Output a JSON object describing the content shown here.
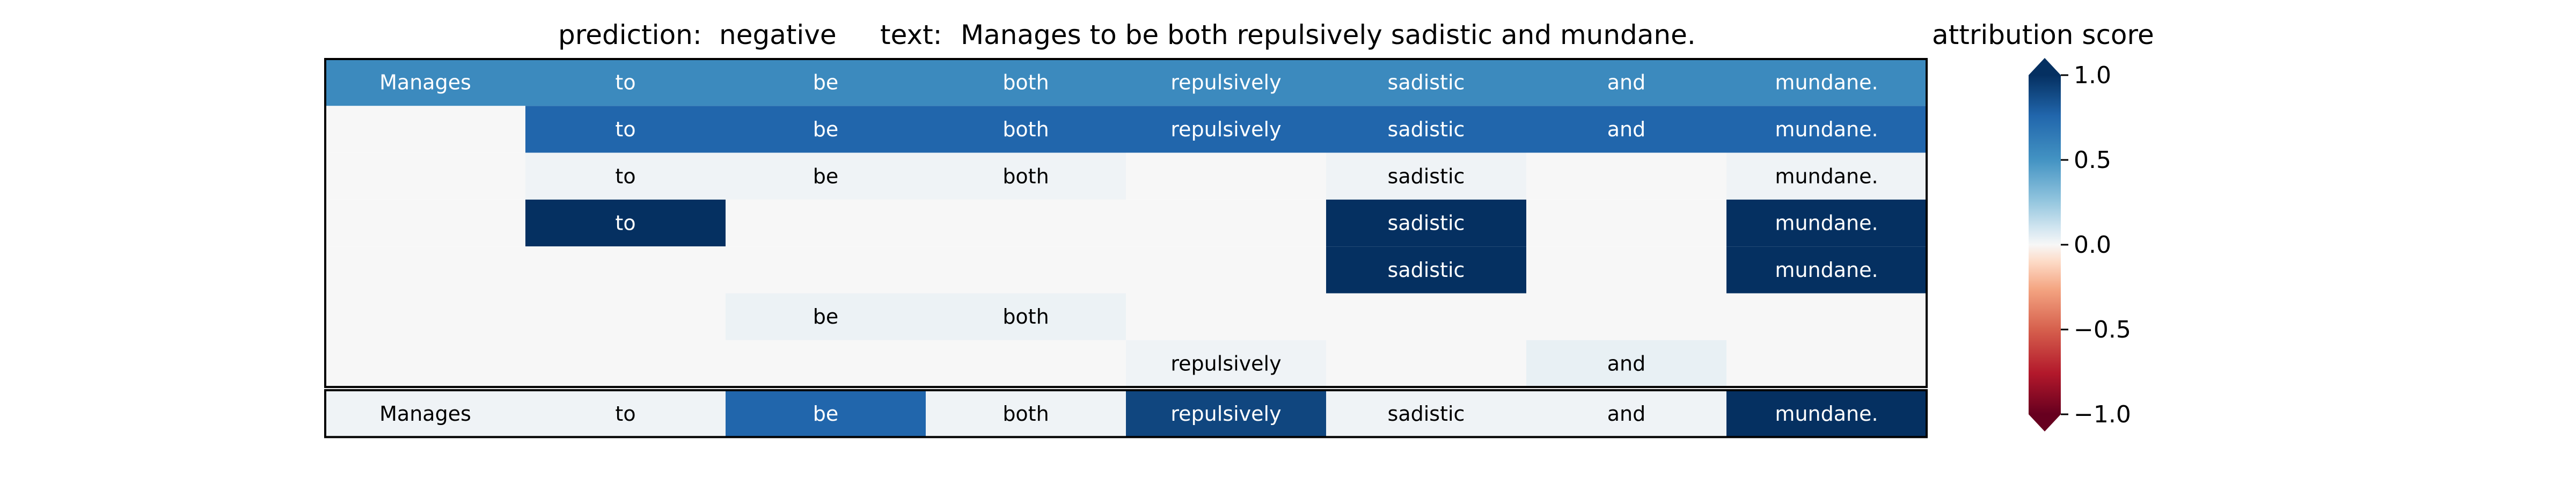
{
  "header": {
    "prediction_label": "prediction:",
    "prediction_value": "negative",
    "text_label": "text:",
    "text_value": "Manages to be both repulsively sadistic and mundane."
  },
  "chart_data": {
    "type": "heatmap",
    "tokens": [
      "Manages",
      "to",
      "be",
      "both",
      "repulsively",
      "sadistic",
      "and",
      "mundane."
    ],
    "rows": [
      [
        0.55,
        0.55,
        0.55,
        0.55,
        0.55,
        0.55,
        0.55,
        0.55
      ],
      [
        0.0,
        0.75,
        0.75,
        0.75,
        0.75,
        0.75,
        0.75,
        0.75
      ],
      [
        0.0,
        0.02,
        0.02,
        0.02,
        0.0,
        0.02,
        0.0,
        0.02
      ],
      [
        0.0,
        1.0,
        0.0,
        0.0,
        0.0,
        1.0,
        0.0,
        1.0
      ],
      [
        0.0,
        0.0,
        0.0,
        0.0,
        0.0,
        1.0,
        0.0,
        1.0
      ],
      [
        0.0,
        0.0,
        0.03,
        0.03,
        0.0,
        0.0,
        0.0,
        0.0
      ],
      [
        0.0,
        0.0,
        0.0,
        0.0,
        0.02,
        0.0,
        0.04,
        0.0
      ]
    ],
    "row_token_visible": [
      [
        true,
        true,
        true,
        true,
        true,
        true,
        true,
        true
      ],
      [
        false,
        true,
        true,
        true,
        true,
        true,
        true,
        true
      ],
      [
        false,
        true,
        true,
        true,
        false,
        true,
        false,
        true
      ],
      [
        false,
        true,
        false,
        false,
        false,
        true,
        false,
        true
      ],
      [
        false,
        false,
        false,
        false,
        false,
        true,
        false,
        true
      ],
      [
        false,
        false,
        true,
        true,
        false,
        false,
        false,
        false
      ],
      [
        false,
        false,
        false,
        false,
        true,
        false,
        true,
        false
      ]
    ],
    "summary_row": [
      0.02,
      0.02,
      0.75,
      0.02,
      0.9,
      0.02,
      0.02,
      1.0
    ],
    "colorbar": {
      "title": "attribution score",
      "ticks": [
        "1.0",
        "0.5",
        "0.0",
        "−0.5",
        "−1.0"
      ],
      "tick_values": [
        1.0,
        0.5,
        0.0,
        -0.5,
        -1.0
      ],
      "colormap": "RdBu",
      "range": [
        -1.0,
        1.0
      ]
    }
  }
}
